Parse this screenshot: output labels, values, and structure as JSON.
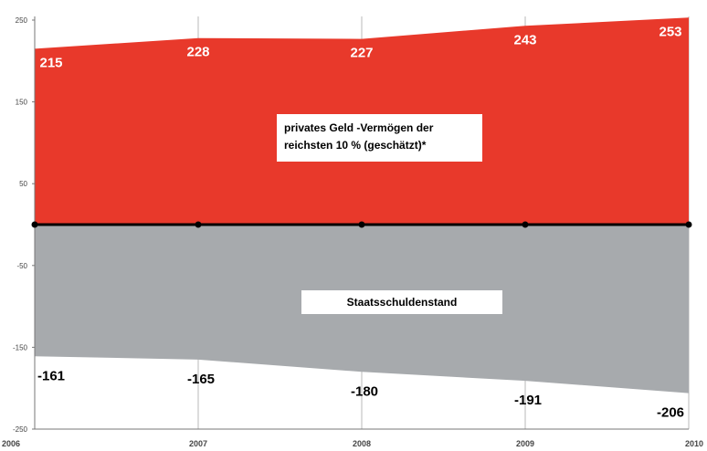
{
  "chart_data": {
    "type": "area",
    "x": [
      "2006",
      "2007",
      "2008",
      "2009",
      "2010"
    ],
    "series": [
      {
        "name": "privates Geld -Vermögen der reichsten 10 % (geschätzt)*",
        "values": [
          215,
          228,
          227,
          243,
          253
        ],
        "labels": [
          "215",
          "228",
          "227",
          "243",
          "253"
        ],
        "color": "#e8392b"
      },
      {
        "name": "Staatsschuldenstand",
        "values": [
          -161,
          -165,
          -180,
          -191,
          -206
        ],
        "labels": [
          "-161",
          "-165",
          "-180",
          "-191",
          "-206"
        ],
        "color": "#a7aaad"
      }
    ],
    "yticks": [
      "250",
      "150",
      "50",
      "-50",
      "-150",
      "-250"
    ],
    "ytick_values": [
      250,
      150,
      50,
      -50,
      -150,
      -250
    ],
    "ylim": [
      -250,
      255
    ],
    "grid": "vertical",
    "zero_line_color": "#000000"
  },
  "annotations": {
    "wealth_line1": "privates Geld  -Vermögen der",
    "wealth_line2": "reichsten 10 % (geschätzt)*",
    "debt_label": "Staatsschuldenstand"
  }
}
